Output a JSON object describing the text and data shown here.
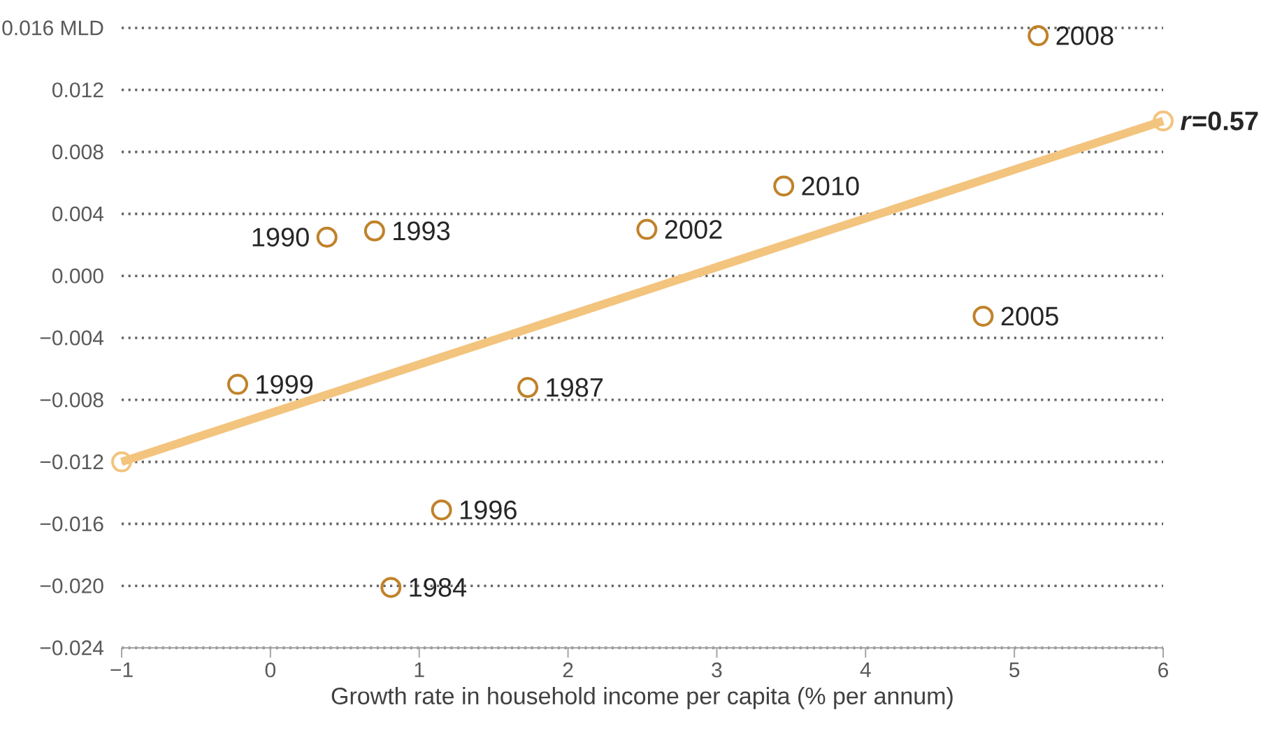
{
  "chart_data": {
    "type": "scatter",
    "xlabel": "Growth rate in household income per capita (% per annum)",
    "xlim": [
      -1,
      6
    ],
    "xticks": [
      {
        "value": -1,
        "label": "−1"
      },
      0,
      1,
      2,
      3,
      4,
      5,
      6
    ],
    "ylim": [
      -0.024,
      0.016
    ],
    "yticks": [
      {
        "value": -0.024,
        "label": "−0.024"
      },
      {
        "value": -0.02,
        "label": "−0.020"
      },
      {
        "value": -0.016,
        "label": "−0.016"
      },
      {
        "value": -0.012,
        "label": "−0.012"
      },
      {
        "value": -0.008,
        "label": "−0.008"
      },
      {
        "value": -0.004,
        "label": "−0.004"
      },
      {
        "value": 0,
        "label": "0.000"
      },
      {
        "value": 0.004,
        "label": "0.004"
      },
      {
        "value": 0.008,
        "label": "0.008"
      },
      {
        "value": 0.012,
        "label": "0.012"
      },
      {
        "value": 0.016,
        "label": "0.016 MLD"
      }
    ],
    "grid": "y",
    "series": [
      {
        "type": "line",
        "color": "#f3c47e",
        "marker": "circle",
        "x": [
          -1,
          6
        ],
        "values": [
          -0.012,
          0.01
        ]
      },
      {
        "color": "#c0822a",
        "marker": "circle",
        "x": [
          5.16,
          3.45,
          0.38,
          0.7,
          2.53,
          4.79,
          -0.22,
          1.73,
          1.15,
          0.81
        ],
        "values": [
          0.0155,
          0.0058,
          0.0025,
          0.0029,
          0.003,
          -0.0026,
          -0.007,
          -0.0072,
          -0.0151,
          -0.0201
        ]
      }
    ],
    "annotations": [
      {
        "text": "2008",
        "x": 5.16,
        "y": 0.0155
      },
      {
        "text": "2010",
        "x": 3.45,
        "y": 0.0058
      },
      {
        "text": "1990",
        "x": 0.38,
        "y": 0.0025
      },
      {
        "text": "1993",
        "x": 0.7,
        "y": 0.0029
      },
      {
        "text": "2002",
        "x": 2.53,
        "y": 0.003
      },
      {
        "text": "2005",
        "x": 4.79,
        "y": -0.0026
      },
      {
        "text": "1999",
        "x": -0.22,
        "y": -0.007
      },
      {
        "text": "1987",
        "x": 1.73,
        "y": -0.0072
      },
      {
        "text": "1996",
        "x": 1.15,
        "y": -0.0151
      },
      {
        "text": "1984",
        "x": 0.81,
        "y": -0.0201
      },
      {
        "text": "*r*=0.57",
        "x": 6,
        "y": 0.01
      }
    ]
  }
}
